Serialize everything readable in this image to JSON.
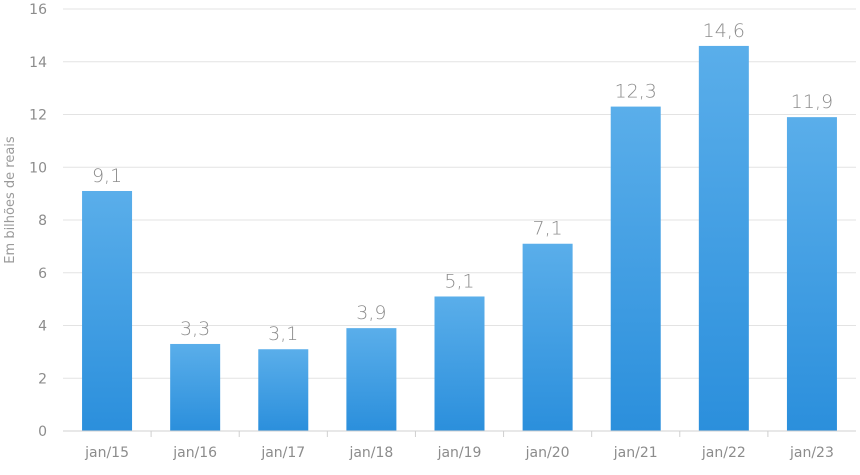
{
  "chart_data": {
    "type": "bar",
    "ylabel": "Em bilhões de reais",
    "xlabel": "",
    "ylim": [
      0,
      16
    ],
    "yticks": [
      0,
      2,
      4,
      6,
      8,
      10,
      12,
      14,
      16
    ],
    "grid": true,
    "categories": [
      "jan/15",
      "jan/16",
      "jan/17",
      "jan/18",
      "jan/19",
      "jan/20",
      "jan/21",
      "jan/22",
      "jan/23"
    ],
    "values": [
      9.1,
      3.3,
      3.1,
      3.9,
      5.1,
      7.1,
      12.3,
      14.6,
      11.9
    ],
    "data_labels": [
      "9,1",
      "3,3",
      "3,1",
      "3,9",
      "5,1",
      "7,1",
      "12,3",
      "14,6",
      "11,9"
    ],
    "colors": {
      "bar_top": "#5aaeea",
      "bar_bottom": "#2b8fdc"
    }
  }
}
